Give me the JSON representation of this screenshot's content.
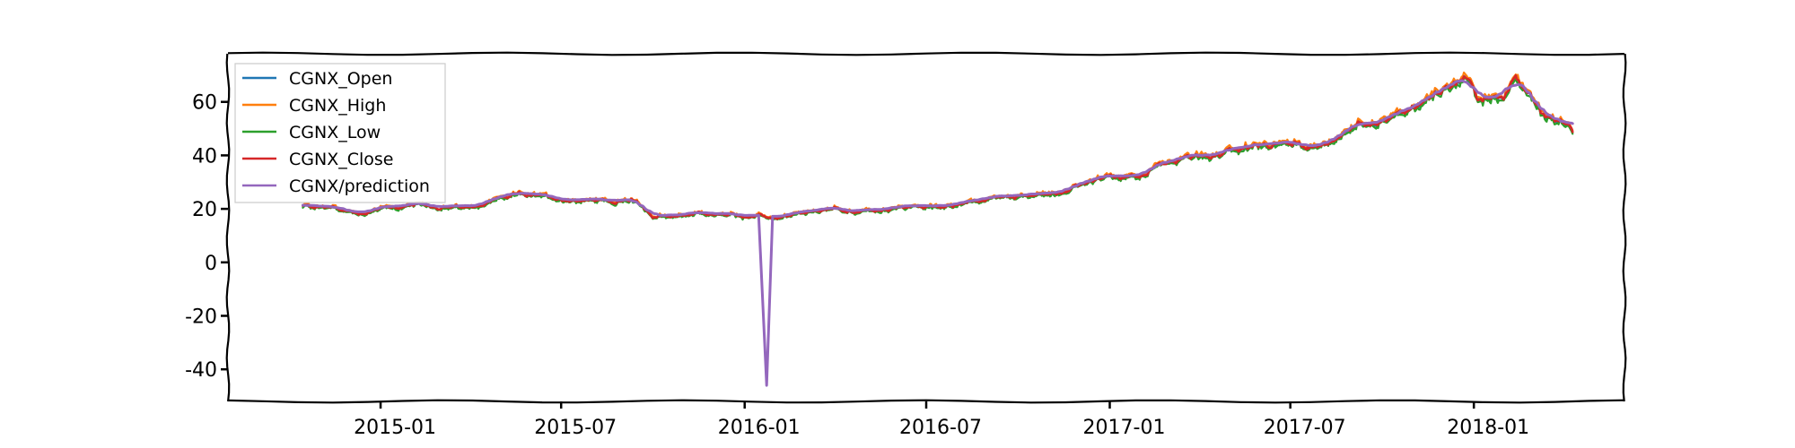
{
  "chart_data": {
    "type": "line",
    "title": "",
    "xlabel": "",
    "ylabel": "",
    "x_start": "2014-10-15",
    "x_end": "2018-04-10",
    "xlim": [
      "2014-08-01",
      "2018-06-01"
    ],
    "ylim": [
      -52,
      78
    ],
    "yticks": [
      -40,
      -20,
      0,
      20,
      40,
      60
    ],
    "ytick_labels": [
      "-40",
      "-20",
      "0",
      "20",
      "40",
      "60"
    ],
    "xticks": [
      "2015-01-01",
      "2015-07-01",
      "2016-01-01",
      "2016-07-01",
      "2017-01-01",
      "2017-07-01",
      "2018-01-01"
    ],
    "xtick_labels": [
      "2015-01",
      "2015-07",
      "2016-01",
      "2016-07",
      "2017-01",
      "2017-07",
      "2018-01"
    ],
    "legend_position": "upper-left",
    "base_path": [
      [
        "2014-10-15",
        21
      ],
      [
        "2014-11-15",
        20.5
      ],
      [
        "2014-12-10",
        18.5
      ],
      [
        "2015-01-01",
        20.5
      ],
      [
        "2015-02-15",
        21
      ],
      [
        "2015-04-01",
        20
      ],
      [
        "2015-05-01",
        24
      ],
      [
        "2015-05-25",
        25
      ],
      [
        "2015-06-20",
        24
      ],
      [
        "2015-08-01",
        23.5
      ],
      [
        "2015-09-15",
        23
      ],
      [
        "2015-10-01",
        17
      ],
      [
        "2015-10-20",
        17.5
      ],
      [
        "2015-11-15",
        18
      ],
      [
        "2015-12-15",
        17.5
      ],
      [
        "2016-01-10",
        17
      ],
      [
        "2016-02-01",
        16
      ],
      [
        "2016-03-01",
        18
      ],
      [
        "2016-04-01",
        20
      ],
      [
        "2016-05-01",
        19
      ],
      [
        "2016-06-01",
        20
      ],
      [
        "2016-07-15",
        21
      ],
      [
        "2016-08-15",
        23
      ],
      [
        "2016-09-15",
        24
      ],
      [
        "2016-10-15",
        25
      ],
      [
        "2016-11-15",
        27
      ],
      [
        "2016-12-15",
        30
      ],
      [
        "2017-01-15",
        32
      ],
      [
        "2017-02-15",
        35
      ],
      [
        "2017-03-15",
        38
      ],
      [
        "2017-04-15",
        40
      ],
      [
        "2017-05-15",
        42
      ],
      [
        "2017-06-15",
        44
      ],
      [
        "2017-07-10",
        45
      ],
      [
        "2017-07-25",
        43
      ],
      [
        "2017-08-20",
        48
      ],
      [
        "2017-09-15",
        52
      ],
      [
        "2017-10-15",
        56
      ],
      [
        "2017-11-15",
        62
      ],
      [
        "2017-12-10",
        68
      ],
      [
        "2017-12-22",
        71
      ],
      [
        "2018-01-05",
        62
      ],
      [
        "2018-01-20",
        60
      ],
      [
        "2018-02-05",
        63
      ],
      [
        "2018-02-12",
        68
      ],
      [
        "2018-02-25",
        64
      ],
      [
        "2018-03-10",
        55
      ],
      [
        "2018-03-25",
        53
      ],
      [
        "2018-04-10",
        48
      ]
    ],
    "prediction_spike": {
      "start": "2016-01-18",
      "low": -46,
      "end": "2016-01-28"
    },
    "series": [
      {
        "name": "CGNX_Open",
        "color": "#1f77b4"
      },
      {
        "name": "CGNX_High",
        "color": "#ff7f0e"
      },
      {
        "name": "CGNX_Low",
        "color": "#2ca02c"
      },
      {
        "name": "CGNX_Close",
        "color": "#d62728"
      },
      {
        "name": "CGNX/prediction",
        "color": "#9467bd"
      }
    ]
  }
}
